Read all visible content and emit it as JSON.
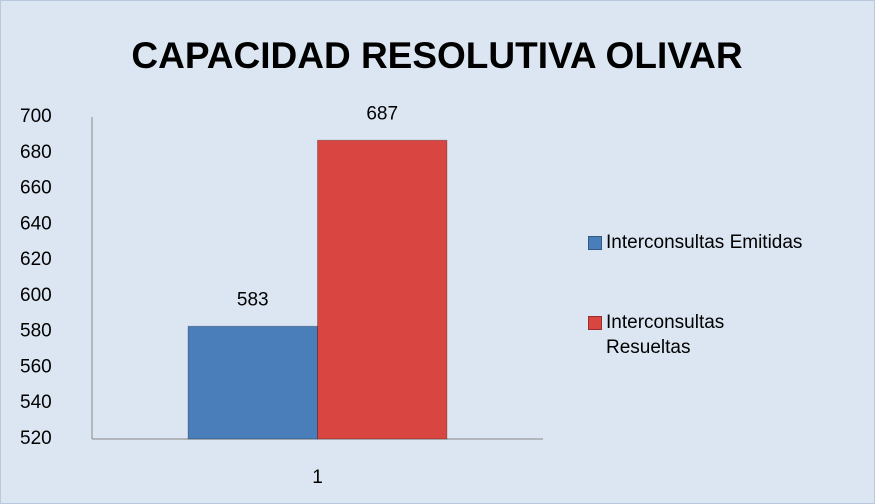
{
  "chart_data": {
    "type": "bar",
    "title": "CAPACIDAD RESOLUTIVA OLIVAR",
    "categories": [
      "1"
    ],
    "series": [
      {
        "name": "Interconsultas Emitidas",
        "color": "#4a7ebb",
        "values": [
          583
        ]
      },
      {
        "name": "Interconsultas Resueltas",
        "color": "#d94541",
        "values": [
          687
        ]
      }
    ],
    "ylim": [
      520,
      700
    ],
    "yticks": [
      520,
      540,
      560,
      580,
      600,
      620,
      640,
      660,
      680,
      700
    ],
    "grid": false,
    "legend": "right"
  }
}
